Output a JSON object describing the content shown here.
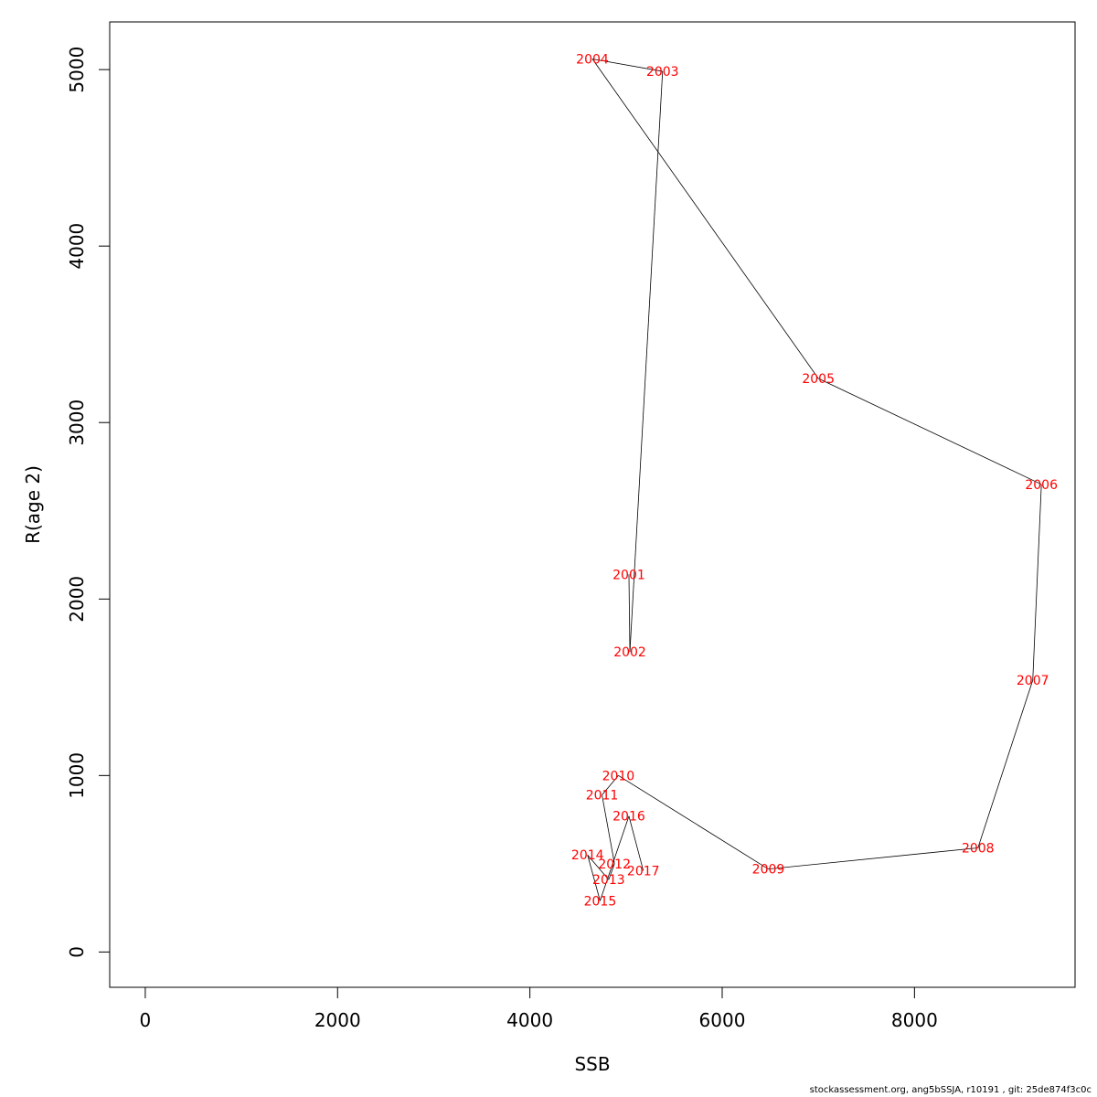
{
  "chart_data": {
    "type": "line",
    "title": "",
    "xlabel": "SSB",
    "ylabel": "R(age 2)",
    "xlim": [
      -370,
      9670
    ],
    "ylim": [
      -200,
      5270
    ],
    "x_ticks": [
      0,
      2000,
      4000,
      6000,
      8000
    ],
    "x_tick_labels": [
      "0",
      "2000",
      "4000",
      "6000",
      "8000"
    ],
    "y_ticks": [
      0,
      1000,
      2000,
      3000,
      4000,
      5000
    ],
    "y_tick_labels": [
      "0",
      "1000",
      "2000",
      "3000",
      "4000",
      "5000"
    ],
    "grid": false,
    "legend": "none",
    "line_color": "#000000",
    "label_color": "#ff0000",
    "points": [
      {
        "year": "2001",
        "x": 5030,
        "y": 2140
      },
      {
        "year": "2002",
        "x": 5040,
        "y": 1700
      },
      {
        "year": "2003",
        "x": 5380,
        "y": 4990
      },
      {
        "year": "2004",
        "x": 4650,
        "y": 5060
      },
      {
        "year": "2005",
        "x": 7000,
        "y": 3250
      },
      {
        "year": "2006",
        "x": 9320,
        "y": 2650
      },
      {
        "year": "2007",
        "x": 9230,
        "y": 1540
      },
      {
        "year": "2008",
        "x": 8660,
        "y": 590
      },
      {
        "year": "2009",
        "x": 6480,
        "y": 470
      },
      {
        "year": "2010",
        "x": 4920,
        "y": 1000
      },
      {
        "year": "2011",
        "x": 4750,
        "y": 890
      },
      {
        "year": "2012",
        "x": 4880,
        "y": 500
      },
      {
        "year": "2013",
        "x": 4820,
        "y": 410
      },
      {
        "year": "2014",
        "x": 4600,
        "y": 550
      },
      {
        "year": "2015",
        "x": 4730,
        "y": 290
      },
      {
        "year": "2016",
        "x": 5030,
        "y": 770
      },
      {
        "year": "2017",
        "x": 5180,
        "y": 460
      }
    ]
  },
  "footer": {
    "credit": "stockassessment.org, ang5bSSJA, r10191 , git: 25de874f3c0c"
  }
}
